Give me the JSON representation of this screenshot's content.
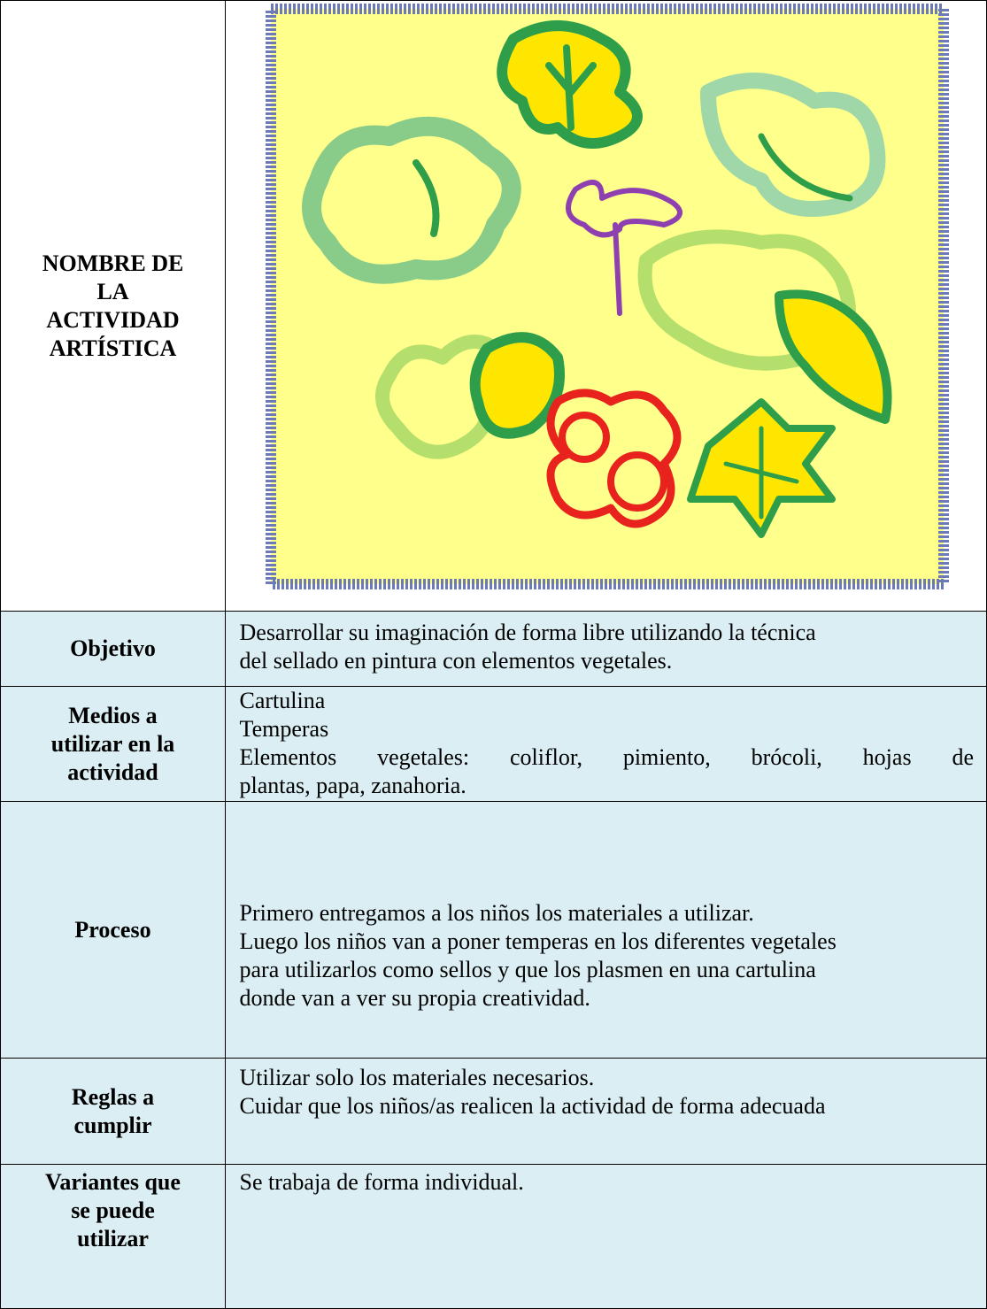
{
  "table": {
    "rows": [
      {
        "label": [
          "NOMBRE DE",
          "LA",
          "ACTIVIDAD",
          "ARTÍSTICA"
        ]
      },
      {
        "label": [
          "Objetivo"
        ],
        "content": [
          "Desarrollar su imaginación de forma libre utilizando la técnica",
          "del sellado en pintura con elementos vegetales."
        ]
      },
      {
        "label": [
          "Medios a",
          "utilizar en la",
          "actividad"
        ],
        "content": [
          "Cartulina",
          "Temperas",
          "Elementos vegetales: coliflor, pimiento, brócoli, hojas de",
          "plantas, papa, zanahoria."
        ]
      },
      {
        "label": [
          "Proceso"
        ],
        "content": [
          "Primero entregamos a los niños los materiales a utilizar.",
          "Luego los niños van a poner temperas en los diferentes vegetales",
          "para utilizarlos como sellos y que los plasmen en una cartulina",
          "donde van a ver su propia creatividad."
        ]
      },
      {
        "label": [
          "Reglas a",
          "cumplir"
        ],
        "content": [
          "Utilizar solo los materiales necesarios.",
          "Cuidar que los niños/as realicen la actividad de forma adecuada"
        ]
      },
      {
        "label": [
          "Variantes que",
          "se puede",
          "utilizar"
        ],
        "content": [
          "Se trabaja de forma individual."
        ]
      }
    ]
  }
}
